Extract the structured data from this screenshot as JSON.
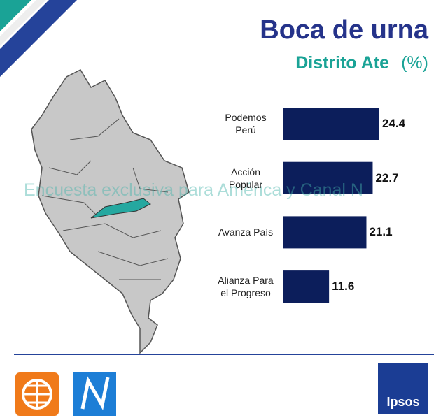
{
  "chart_data": {
    "type": "bar",
    "orientation": "horizontal",
    "title": "Boca de urna",
    "subtitle": "Distrito Ate",
    "unit": "(%)",
    "categories": [
      "Podemos Perú",
      "Acción Popular",
      "Avanza País",
      "Alianza Para el Progreso"
    ],
    "values": [
      24.4,
      22.7,
      21.1,
      11.6
    ],
    "color": "#0c1e5b"
  },
  "watermark": "Encuesta exclusiva para América y Canal N",
  "logos": {
    "ipsos": "Ipsos"
  }
}
